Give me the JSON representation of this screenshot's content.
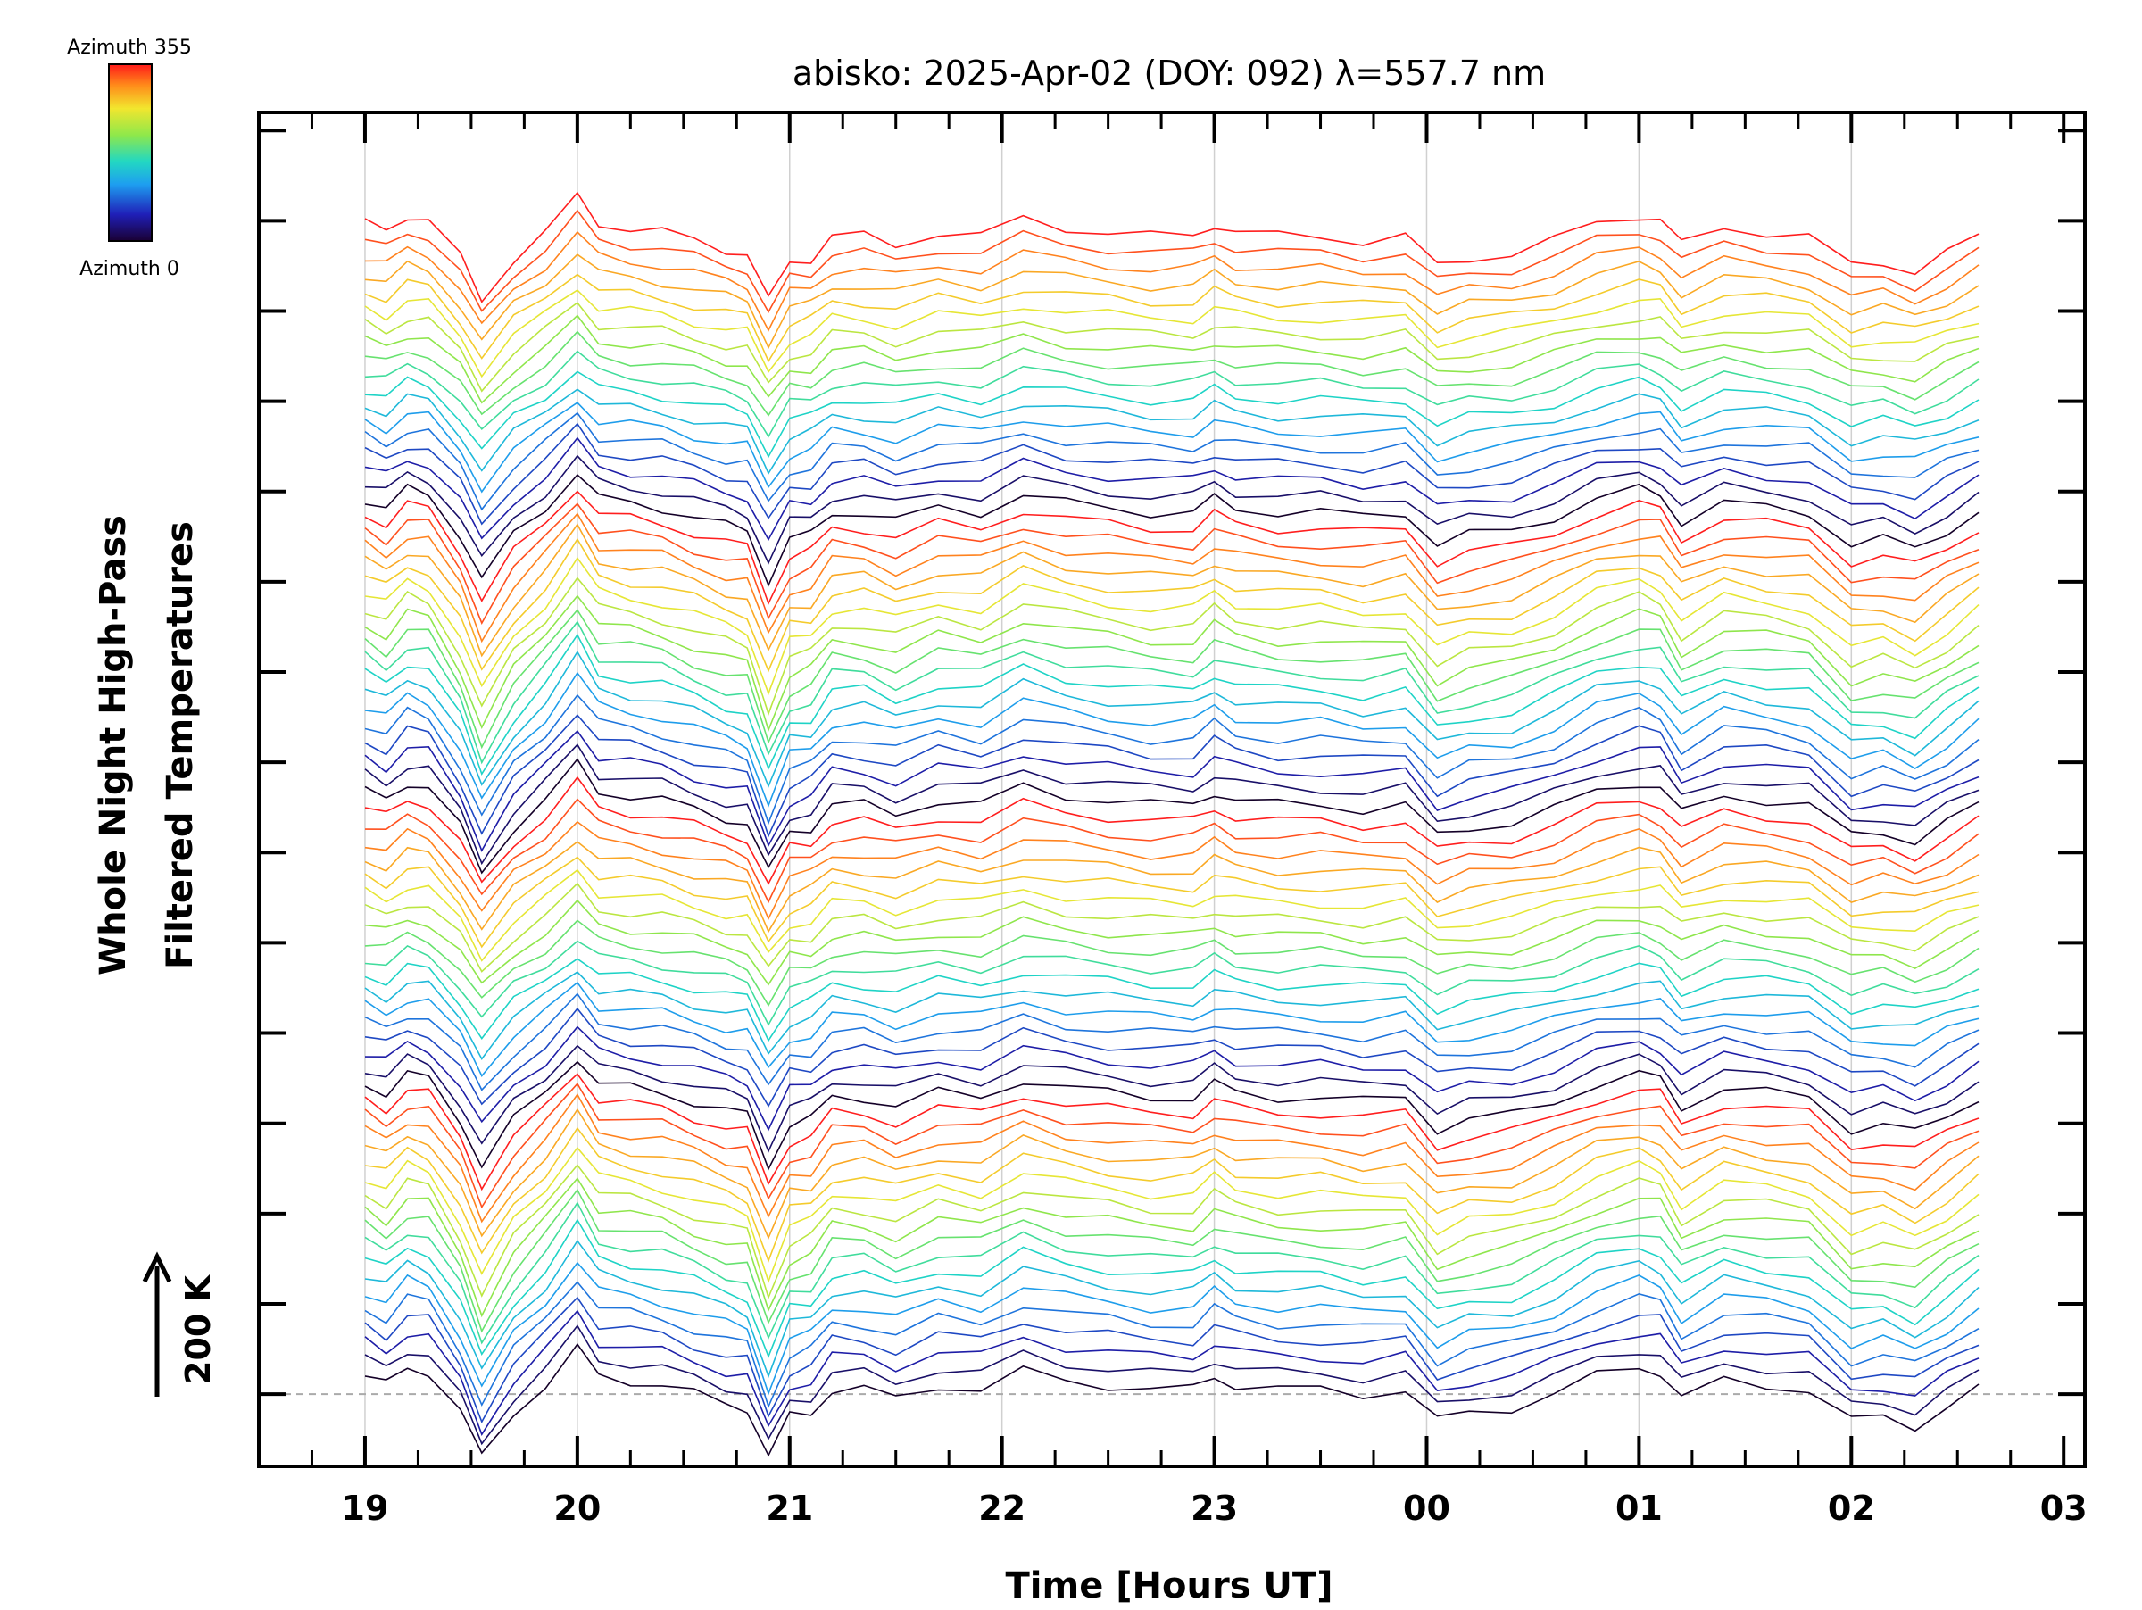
{
  "chart_data": {
    "type": "line",
    "title": "abisko: 2025-Apr-02 (DOY: 092) λ=557.7 nm",
    "xlabel": "Time [Hours UT]",
    "ylabel_line1": "Whole Night High-Pass",
    "ylabel_line2": "Filtered Temperatures",
    "x_ticks": [
      "19",
      "20",
      "21",
      "22",
      "23",
      "00",
      "01",
      "02",
      "03"
    ],
    "x_tick_hours": [
      19,
      20,
      21,
      22,
      23,
      24,
      25,
      26,
      27
    ],
    "xlim": [
      18.5,
      27.1
    ],
    "x_range": [
      19.0,
      26.6
    ],
    "scale_label": "200 K",
    "colorbar": {
      "top_label": "Azimuth 355",
      "bottom_label": "Azimuth 0",
      "colormap": "rainbow"
    },
    "series_count": 72,
    "azimuth_step_deg": 5,
    "offset_per_series_k": 18,
    "ylim_k": [
      -80,
      1420
    ],
    "baseline_k": 0,
    "grid": true,
    "legend": "colorbar top-left",
    "common_profile": {
      "x": [
        19.0,
        19.1,
        19.2,
        19.3,
        19.45,
        19.55,
        19.7,
        19.85,
        20.0,
        20.1,
        20.25,
        20.4,
        20.55,
        20.7,
        20.8,
        20.9,
        21.0,
        21.1,
        21.2,
        21.35,
        21.5,
        21.7,
        21.9,
        22.1,
        22.3,
        22.5,
        22.7,
        22.9,
        23.0,
        23.1,
        23.3,
        23.5,
        23.7,
        23.9,
        24.05,
        24.2,
        24.4,
        24.6,
        24.8,
        25.0,
        25.1,
        25.2,
        25.4,
        25.6,
        25.8,
        26.0,
        26.15,
        26.3,
        26.45,
        26.6
      ],
      "y": [
        20,
        10,
        30,
        25,
        -20,
        -70,
        -20,
        10,
        50,
        20,
        15,
        10,
        0,
        -10,
        -15,
        -70,
        -25,
        -20,
        5,
        5,
        -5,
        10,
        5,
        25,
        15,
        10,
        5,
        5,
        20,
        10,
        5,
        5,
        0,
        5,
        -30,
        -20,
        -15,
        0,
        20,
        30,
        25,
        -5,
        15,
        10,
        5,
        -30,
        -25,
        -35,
        -15,
        5
      ]
    }
  }
}
